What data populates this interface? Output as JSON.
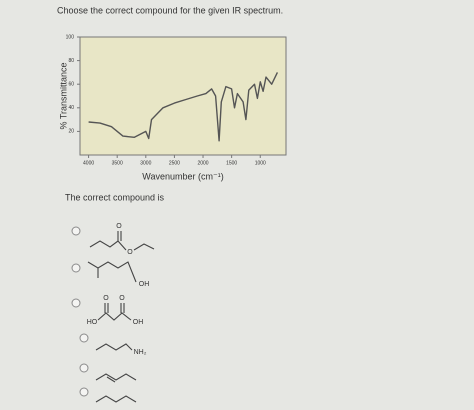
{
  "question": "Choose the correct compound for the given IR spectrum.",
  "chart_data": {
    "type": "line",
    "xlabel": "Wavenumber (cm⁻¹)",
    "ylabel": "% Transmittance",
    "x": [
      4000,
      3800,
      3600,
      3400,
      3200,
      3000,
      2950,
      2900,
      2700,
      2500,
      2300,
      2100,
      1950,
      1850,
      1780,
      1720,
      1680,
      1600,
      1500,
      1450,
      1400,
      1300,
      1250,
      1200,
      1100,
      1050,
      1000,
      950,
      900,
      800,
      700
    ],
    "series": [
      {
        "color": "#555555",
        "values": [
          28,
          27,
          24,
          16,
          15,
          20,
          14,
          30,
          40,
          44,
          47,
          50,
          52,
          56,
          50,
          12,
          45,
          58,
          56,
          40,
          52,
          45,
          30,
          55,
          60,
          48,
          62,
          54,
          66,
          60,
          70
        ]
      }
    ],
    "xlim": [
      4150,
      550
    ],
    "xticks": [
      4000,
      3500,
      3000,
      2500,
      2000,
      1500,
      1000
    ],
    "ylim": [
      0,
      100
    ],
    "yticks": [
      20,
      40,
      60,
      80,
      100
    ],
    "background": "#e8e6c6"
  },
  "prompt": "The correct compound is",
  "options": [
    {
      "labels": [
        "O",
        "O"
      ]
    },
    {
      "labels": [
        "OH"
      ]
    },
    {
      "labels": [
        "O",
        "O",
        "HO",
        "OH"
      ]
    },
    {
      "labels": [
        "NH₂"
      ]
    }
  ]
}
